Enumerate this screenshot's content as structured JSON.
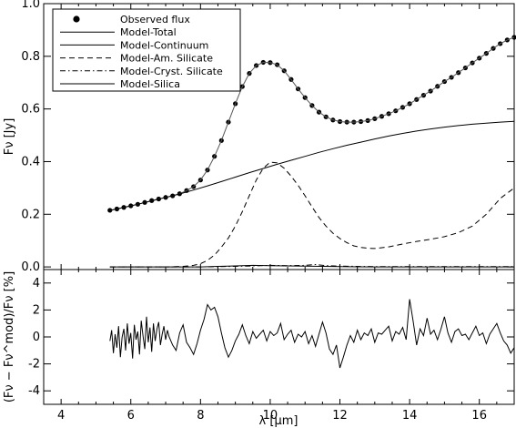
{
  "chart_data": [
    {
      "type": "line",
      "xlim": [
        3.5,
        17
      ],
      "ylim": [
        -0.01,
        1.0
      ],
      "xticks": [
        4,
        6,
        8,
        10,
        12,
        14,
        16
      ],
      "yticks": [
        0.0,
        0.2,
        0.4,
        0.6,
        0.8,
        1.0
      ],
      "ytick_labels": [
        "0.0",
        "0.2",
        "0.4",
        "0.6",
        "0.8",
        "1.0"
      ],
      "ylabel": "Fν [Jy]",
      "grid": false,
      "legend_position": "top-left",
      "legend": [
        {
          "label": "Observed flux",
          "style": "dot"
        },
        {
          "label": "Model-Total",
          "style": "solid"
        },
        {
          "label": "Model-Continuum",
          "style": "solid"
        },
        {
          "label": "Model-Am. Silicate",
          "style": "dashed"
        },
        {
          "label": "Model-Cryst. Silicate",
          "style": "dashdot"
        },
        {
          "label": "Model-Silica",
          "style": "solid"
        }
      ],
      "series": [
        {
          "name": "Observed flux",
          "style": "dot",
          "x": [
            5.4,
            5.6,
            5.8,
            6.0,
            6.2,
            6.4,
            6.6,
            6.8,
            7.0,
            7.2,
            7.4,
            7.6,
            7.8,
            8.0,
            8.2,
            8.4,
            8.6,
            8.8,
            9.0,
            9.2,
            9.4,
            9.6,
            9.8,
            10.0,
            10.2,
            10.4,
            10.6,
            10.8,
            11.0,
            11.2,
            11.4,
            11.6,
            11.8,
            12.0,
            12.2,
            12.4,
            12.6,
            12.8,
            13.0,
            13.2,
            13.4,
            13.6,
            13.8,
            14.0,
            14.2,
            14.4,
            14.6,
            14.8,
            15.0,
            15.2,
            15.4,
            15.6,
            15.8,
            16.0,
            16.2,
            16.4,
            16.6,
            16.8,
            17.0
          ],
          "y": [
            0.215,
            0.22,
            0.226,
            0.232,
            0.238,
            0.245,
            0.252,
            0.258,
            0.264,
            0.27,
            0.278,
            0.29,
            0.305,
            0.33,
            0.368,
            0.42,
            0.48,
            0.55,
            0.62,
            0.685,
            0.735,
            0.765,
            0.777,
            0.776,
            0.768,
            0.745,
            0.712,
            0.676,
            0.643,
            0.613,
            0.588,
            0.57,
            0.558,
            0.552,
            0.55,
            0.55,
            0.552,
            0.556,
            0.563,
            0.572,
            0.582,
            0.593,
            0.606,
            0.62,
            0.636,
            0.652,
            0.668,
            0.686,
            0.704,
            0.72,
            0.738,
            0.756,
            0.775,
            0.793,
            0.811,
            0.83,
            0.848,
            0.862,
            0.872
          ]
        },
        {
          "name": "Model-Total",
          "style": "solid",
          "x": [
            5.4,
            5.6,
            5.8,
            6.0,
            6.2,
            6.4,
            6.6,
            6.8,
            7.0,
            7.2,
            7.4,
            7.6,
            7.8,
            8.0,
            8.2,
            8.4,
            8.6,
            8.8,
            9.0,
            9.2,
            9.4,
            9.6,
            9.8,
            10.0,
            10.2,
            10.4,
            10.6,
            10.8,
            11.0,
            11.2,
            11.4,
            11.6,
            11.8,
            12.0,
            12.2,
            12.4,
            12.6,
            12.8,
            13.0,
            13.2,
            13.4,
            13.6,
            13.8,
            14.0,
            14.2,
            14.4,
            14.6,
            14.8,
            15.0,
            15.2,
            15.4,
            15.6,
            15.8,
            16.0,
            16.2,
            16.4,
            16.6,
            16.8,
            17.0
          ],
          "y": [
            0.215,
            0.22,
            0.226,
            0.232,
            0.238,
            0.245,
            0.252,
            0.258,
            0.264,
            0.27,
            0.278,
            0.29,
            0.305,
            0.33,
            0.368,
            0.42,
            0.48,
            0.55,
            0.62,
            0.685,
            0.735,
            0.765,
            0.777,
            0.776,
            0.768,
            0.745,
            0.712,
            0.676,
            0.643,
            0.613,
            0.588,
            0.57,
            0.558,
            0.552,
            0.55,
            0.55,
            0.552,
            0.556,
            0.563,
            0.572,
            0.582,
            0.593,
            0.606,
            0.62,
            0.636,
            0.652,
            0.668,
            0.686,
            0.704,
            0.72,
            0.738,
            0.756,
            0.775,
            0.793,
            0.811,
            0.83,
            0.848,
            0.862,
            0.872
          ]
        },
        {
          "name": "Model-Continuum",
          "style": "solid",
          "x": [
            5.4,
            5.8,
            6.2,
            6.6,
            7.0,
            7.4,
            7.8,
            8.2,
            8.6,
            9.0,
            9.4,
            9.8,
            10.2,
            10.6,
            11.0,
            11.4,
            11.8,
            12.2,
            12.6,
            13.0,
            13.4,
            13.8,
            14.2,
            14.6,
            15.0,
            15.4,
            15.8,
            16.2,
            16.6,
            17.0
          ],
          "y": [
            0.215,
            0.226,
            0.238,
            0.251,
            0.264,
            0.277,
            0.292,
            0.308,
            0.324,
            0.341,
            0.358,
            0.374,
            0.39,
            0.405,
            0.42,
            0.435,
            0.449,
            0.462,
            0.474,
            0.486,
            0.497,
            0.507,
            0.516,
            0.524,
            0.531,
            0.537,
            0.542,
            0.546,
            0.55,
            0.553
          ]
        },
        {
          "name": "Model-Am. Silicate",
          "style": "dashed",
          "x": [
            5.4,
            6.0,
            6.5,
            7.0,
            7.5,
            7.8,
            8.0,
            8.2,
            8.4,
            8.6,
            8.8,
            9.0,
            9.2,
            9.4,
            9.6,
            9.8,
            10.0,
            10.2,
            10.4,
            10.6,
            10.8,
            11.0,
            11.2,
            11.4,
            11.6,
            11.8,
            12.0,
            12.2,
            12.4,
            12.6,
            12.8,
            13.0,
            13.4,
            13.8,
            14.2,
            14.6,
            15.0,
            15.4,
            15.8,
            16.2,
            16.6,
            17.0
          ],
          "y": [
            0.0,
            0.0,
            0.0,
            0.0,
            0.002,
            0.006,
            0.012,
            0.025,
            0.045,
            0.075,
            0.11,
            0.155,
            0.21,
            0.27,
            0.33,
            0.375,
            0.398,
            0.395,
            0.375,
            0.345,
            0.31,
            0.27,
            0.228,
            0.188,
            0.155,
            0.128,
            0.108,
            0.092,
            0.08,
            0.074,
            0.071,
            0.07,
            0.076,
            0.087,
            0.097,
            0.105,
            0.115,
            0.13,
            0.155,
            0.2,
            0.26,
            0.3
          ]
        },
        {
          "name": "Model-Cryst. Silicate",
          "style": "dashdot",
          "x": [
            5.4,
            6.0,
            7.0,
            8.0,
            9.0,
            9.5,
            10.0,
            10.5,
            11.0,
            11.3,
            11.6,
            12.0,
            13.0,
            14.0,
            15.0,
            16.0,
            17.0
          ],
          "y": [
            0.0,
            0.0,
            0.0,
            0.0,
            0.002,
            0.004,
            0.006,
            0.005,
            0.006,
            0.009,
            0.005,
            0.003,
            0.001,
            0.001,
            0.001,
            0.001,
            0.001
          ]
        },
        {
          "name": "Model-Silica",
          "style": "solid",
          "x": [
            5.4,
            6.0,
            7.0,
            8.0,
            8.5,
            9.0,
            9.5,
            10.0,
            10.5,
            11.0,
            12.0,
            13.0,
            14.0,
            15.0,
            16.0,
            17.0
          ],
          "y": [
            0.0,
            0.0,
            0.0,
            0.0,
            0.002,
            0.004,
            0.006,
            0.005,
            0.004,
            0.003,
            0.001,
            0.0,
            0.0,
            0.0,
            0.0,
            0.0
          ]
        }
      ]
    },
    {
      "type": "line",
      "xlim": [
        3.5,
        17
      ],
      "ylim": [
        -5,
        5
      ],
      "xticks": [
        4,
        6,
        8,
        10,
        12,
        14,
        16
      ],
      "yticks": [
        -4,
        -2,
        0,
        2,
        4
      ],
      "xlabel": "λ [μm]",
      "ylabel": "(Fν − Fν^mod)/Fν [%]",
      "grid": false,
      "series": [
        {
          "name": "residual",
          "x": [
            5.4,
            5.45,
            5.5,
            5.55,
            5.6,
            5.65,
            5.7,
            5.75,
            5.8,
            5.85,
            5.9,
            5.95,
            6.0,
            6.05,
            6.1,
            6.15,
            6.2,
            6.25,
            6.3,
            6.35,
            6.4,
            6.45,
            6.5,
            6.55,
            6.6,
            6.65,
            6.7,
            6.75,
            6.8,
            6.85,
            6.9,
            6.95,
            7.0,
            7.05,
            7.1,
            7.2,
            7.3,
            7.4,
            7.5,
            7.6,
            7.7,
            7.8,
            7.9,
            8.0,
            8.1,
            8.2,
            8.3,
            8.4,
            8.5,
            8.6,
            8.7,
            8.8,
            8.9,
            9.0,
            9.1,
            9.2,
            9.3,
            9.4,
            9.5,
            9.6,
            9.7,
            9.8,
            9.9,
            10.0,
            10.1,
            10.2,
            10.3,
            10.4,
            10.5,
            10.6,
            10.7,
            10.8,
            10.9,
            11.0,
            11.1,
            11.2,
            11.3,
            11.4,
            11.5,
            11.6,
            11.7,
            11.8,
            11.9,
            12.0,
            12.1,
            12.2,
            12.3,
            12.4,
            12.5,
            12.6,
            12.7,
            12.8,
            12.9,
            13.0,
            13.1,
            13.2,
            13.3,
            13.4,
            13.5,
            13.6,
            13.7,
            13.8,
            13.9,
            14.0,
            14.1,
            14.2,
            14.3,
            14.4,
            14.5,
            14.6,
            14.7,
            14.8,
            14.9,
            15.0,
            15.1,
            15.2,
            15.3,
            15.4,
            15.5,
            15.6,
            15.7,
            15.8,
            15.9,
            16.0,
            16.1,
            16.2,
            16.3,
            16.4,
            16.5,
            16.6,
            16.7,
            16.8,
            16.9,
            17.0
          ],
          "y": [
            -0.3,
            0.5,
            -1.2,
            0.2,
            -0.8,
            0.8,
            -1.5,
            0.0,
            0.6,
            -1.0,
            1.0,
            -0.5,
            0.3,
            -1.6,
            0.9,
            -0.2,
            0.4,
            -1.3,
            1.2,
            0.1,
            -0.9,
            1.5,
            -0.4,
            0.7,
            -1.1,
            1.0,
            -0.3,
            0.6,
            1.1,
            -0.6,
            0.2,
            0.8,
            -0.2,
            0.5,
            0.0,
            -0.6,
            -1.0,
            0.3,
            0.9,
            -0.4,
            -0.8,
            -1.3,
            -0.5,
            0.5,
            1.3,
            2.4,
            2.0,
            2.2,
            1.5,
            0.3,
            -0.8,
            -1.5,
            -1.0,
            -0.3,
            0.2,
            0.9,
            0.1,
            -0.5,
            0.4,
            -0.1,
            0.2,
            0.5,
            -0.3,
            0.4,
            0.1,
            0.3,
            1.0,
            -0.2,
            0.2,
            0.5,
            -0.4,
            0.2,
            0.0,
            0.4,
            -0.5,
            0.1,
            -0.7,
            0.2,
            1.1,
            0.3,
            -0.9,
            -1.3,
            -0.6,
            -2.3,
            -1.5,
            -0.6,
            0.1,
            -0.4,
            0.5,
            -0.2,
            0.3,
            0.1,
            0.6,
            -0.4,
            0.3,
            0.2,
            0.5,
            0.8,
            -0.3,
            0.4,
            0.2,
            0.7,
            -0.2,
            2.8,
            1.2,
            -0.6,
            0.6,
            0.1,
            1.4,
            0.2,
            0.5,
            -0.2,
            0.6,
            1.5,
            0.3,
            -0.4,
            0.4,
            0.6,
            0.1,
            0.2,
            -0.2,
            0.3,
            0.8,
            0.1,
            0.3,
            -0.5,
            0.2,
            0.6,
            1.0,
            0.3,
            -0.3,
            -0.6,
            -1.2,
            -0.8
          ]
        }
      ]
    }
  ]
}
